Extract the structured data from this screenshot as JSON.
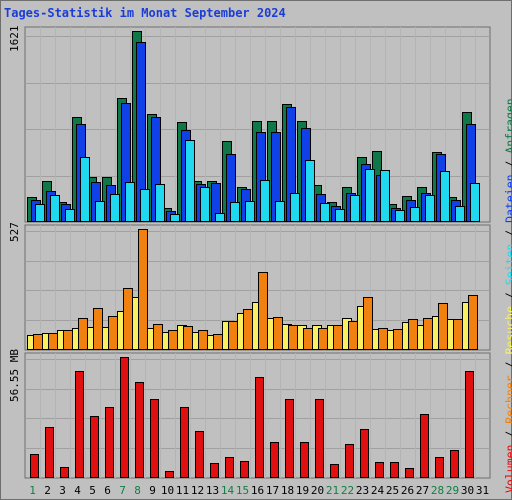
{
  "chart_title": "Tages-Statistik im Monat September 2024",
  "colors": {
    "anfragen": "#107848",
    "dateien": "#1040e8",
    "seiten": "#20d8f0",
    "besuche": "#f8f060",
    "rechner": "#f08010",
    "volumen": "#e01010",
    "weekend_label": "#108040",
    "weekday_label": "#000000",
    "grid": "#a0a0a0",
    "panel_bg": "#c0c0c0"
  },
  "chart_data": [
    {
      "type": "bar",
      "name": "panel-top",
      "y_label": "1621",
      "ylim": [
        0,
        1621
      ],
      "categories": [
        "1",
        "2",
        "3",
        "4",
        "5",
        "6",
        "7",
        "8",
        "9",
        "10",
        "11",
        "12",
        "13",
        "14",
        "15",
        "16",
        "17",
        "18",
        "19",
        "20",
        "21",
        "22",
        "23",
        "24",
        "25",
        "26",
        "27",
        "28",
        "29",
        "30",
        "31"
      ],
      "series": [
        {
          "name": "Anfragen",
          "values": [
            210,
            350,
            170,
            890,
            380,
            380,
            1050,
            1621,
            920,
            120,
            850,
            350,
            350,
            690,
            300,
            860,
            860,
            1000,
            860,
            310,
            170,
            300,
            550,
            600,
            150,
            220,
            300,
            590,
            210,
            930,
            0
          ]
        },
        {
          "name": "Dateien",
          "values": [
            190,
            260,
            150,
            830,
            340,
            310,
            1010,
            1530,
            890,
            90,
            780,
            320,
            330,
            580,
            280,
            760,
            760,
            980,
            800,
            240,
            140,
            250,
            490,
            400,
            120,
            190,
            250,
            580,
            190,
            830,
            0
          ]
        },
        {
          "name": "Seiten",
          "values": [
            150,
            230,
            110,
            550,
            180,
            240,
            340,
            280,
            320,
            70,
            700,
            300,
            80,
            170,
            180,
            360,
            180,
            250,
            530,
            160,
            110,
            230,
            450,
            440,
            100,
            130,
            230,
            430,
            140,
            330,
            0
          ]
        }
      ]
    },
    {
      "type": "bar",
      "name": "panel-middle",
      "y_label": "527",
      "ylim": [
        0,
        527
      ],
      "categories": [
        "1",
        "2",
        "3",
        "4",
        "5",
        "6",
        "7",
        "8",
        "9",
        "10",
        "11",
        "12",
        "13",
        "14",
        "15",
        "16",
        "17",
        "18",
        "19",
        "20",
        "21",
        "22",
        "23",
        "24",
        "25",
        "26",
        "27",
        "28",
        "29",
        "30",
        "31"
      ],
      "series": [
        {
          "name": "Besuche",
          "values": [
            65,
            75,
            85,
            95,
            100,
            100,
            170,
            230,
            95,
            80,
            110,
            80,
            65,
            125,
            160,
            210,
            140,
            115,
            110,
            110,
            110,
            140,
            190,
            90,
            85,
            120,
            110,
            150,
            135,
            210,
            0
          ]
        },
        {
          "name": "Rechner",
          "values": [
            70,
            75,
            85,
            140,
            185,
            150,
            270,
            527,
            115,
            85,
            105,
            85,
            70,
            125,
            180,
            340,
            145,
            110,
            95,
            95,
            110,
            125,
            230,
            95,
            90,
            135,
            140,
            205,
            135,
            240,
            0
          ]
        }
      ]
    },
    {
      "type": "bar",
      "name": "panel-bottom",
      "y_label": "56.55 MB",
      "ylim": [
        0,
        56.55
      ],
      "categories": [
        "1",
        "2",
        "3",
        "4",
        "5",
        "6",
        "7",
        "8",
        "9",
        "10",
        "11",
        "12",
        "13",
        "14",
        "15",
        "16",
        "17",
        "18",
        "19",
        "20",
        "21",
        "22",
        "23",
        "24",
        "25",
        "26",
        "27",
        "28",
        "29",
        "30",
        "31"
      ],
      "series": [
        {
          "name": "Volumen",
          "values": [
            11,
            24,
            5,
            50,
            29,
            33,
            56.55,
            45,
            37,
            3.5,
            33,
            22,
            7,
            10,
            8,
            47,
            17,
            37,
            17,
            37,
            6.5,
            16,
            23,
            7.5,
            7.5,
            4.5,
            30,
            10,
            13,
            50,
            0
          ]
        }
      ]
    }
  ],
  "x_axis_labels": [
    "1",
    "2",
    "3",
    "4",
    "5",
    "6",
    "7",
    "8",
    "9",
    "10",
    "11",
    "12",
    "13",
    "14",
    "15",
    "16",
    "17",
    "18",
    "19",
    "20",
    "21",
    "22",
    "23",
    "24",
    "25",
    "26",
    "27",
    "28",
    "29",
    "30",
    "31"
  ],
  "weekend_days": [
    1,
    7,
    8,
    14,
    15,
    21,
    22,
    28,
    29
  ],
  "legend": [
    "Volumen",
    "/",
    "Rechner",
    "/",
    "Besuche",
    "/",
    "Seiten",
    "/",
    "Dateien",
    "/",
    "Anfragen"
  ]
}
